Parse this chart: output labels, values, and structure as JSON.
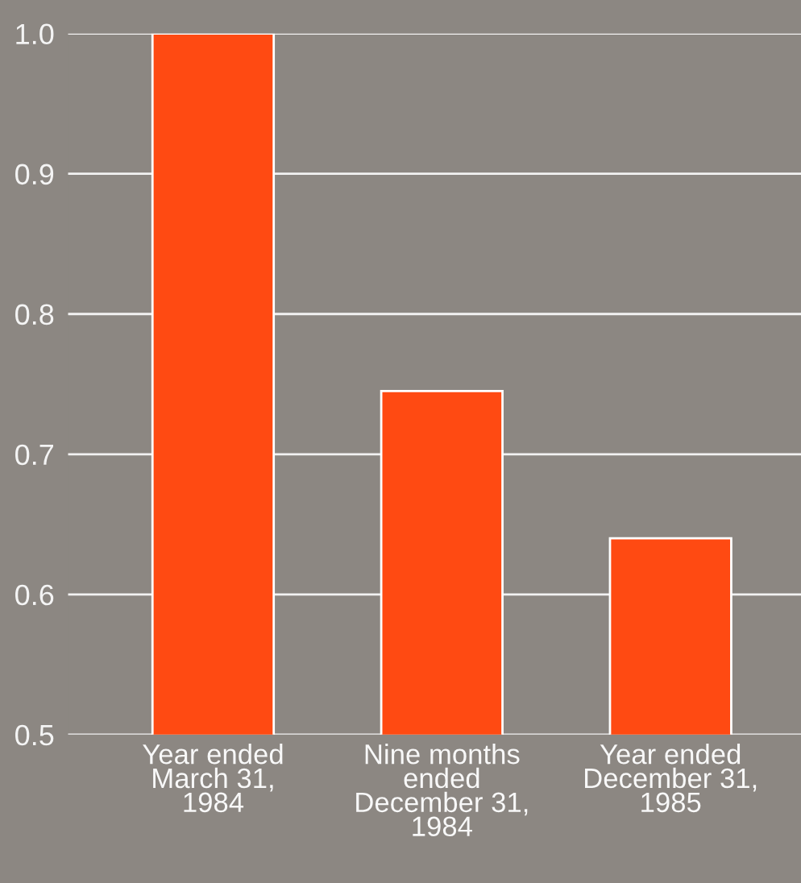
{
  "chart_data": {
    "type": "bar",
    "categories": [
      "Year ended\nMarch 31,\n1984",
      "Nine months\nended\nDecember 31,\n1984",
      "Year ended\nDecember 31,\n1985"
    ],
    "values": [
      1.0,
      0.745,
      0.64
    ],
    "color": "#ff4a12",
    "ylim": [
      0.5,
      1.0
    ],
    "yticks": [
      {
        "value": 0.5,
        "label": "0.5"
      },
      {
        "value": 0.6,
        "label": "0.6"
      },
      {
        "value": 0.7,
        "label": "0.7"
      },
      {
        "value": 0.8,
        "label": "0.8"
      },
      {
        "value": 0.9,
        "label": "0.9"
      },
      {
        "value": 1.0,
        "label": "1.0"
      }
    ],
    "grid": "y",
    "legend": false
  }
}
